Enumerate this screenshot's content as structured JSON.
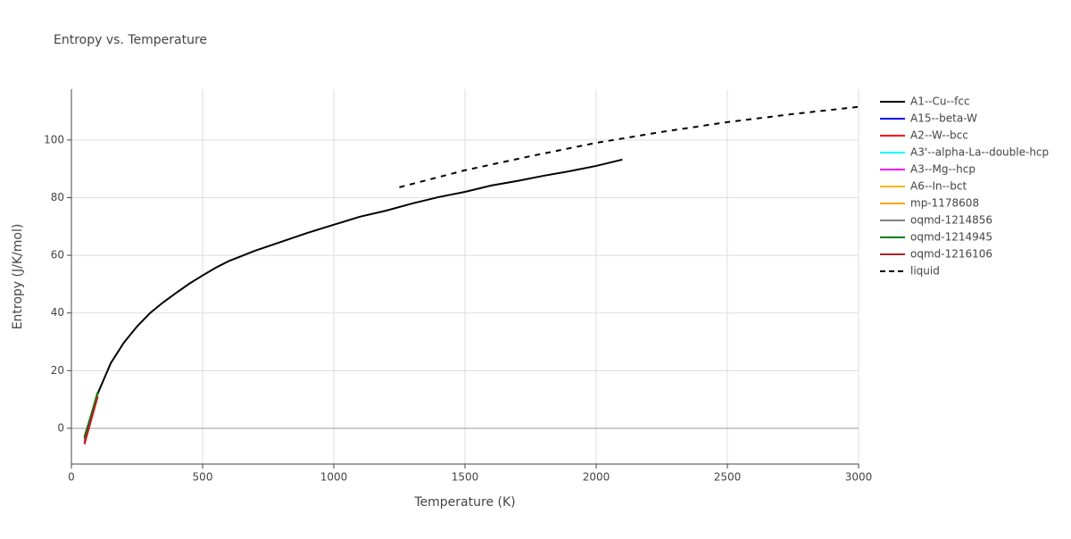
{
  "chart_data": {
    "type": "line",
    "title": "Entropy vs. Temperature",
    "x_label": "Temperature (K)",
    "y_label": "Entropy (J/K/mol)",
    "xlim": [
      0,
      3000
    ],
    "ylim": [
      -12.4,
      117.6
    ],
    "xticks": [
      0,
      500,
      1000,
      1500,
      2000,
      2500,
      3000
    ],
    "yticks": [
      0,
      20,
      40,
      60,
      80,
      100
    ],
    "grid": true,
    "legend": "right",
    "series": [
      {
        "name": "A1--Cu--fcc",
        "color": "#000000",
        "x": [
          50,
          100,
          150,
          200,
          250,
          300,
          350,
          400,
          450,
          500,
          550,
          600,
          700,
          800,
          900,
          1000,
          1100,
          1200,
          1300,
          1400,
          1500,
          1600,
          1700,
          1800,
          1900,
          2000,
          2100
        ],
        "values": [
          -3,
          12,
          22.6,
          29.7,
          35.3,
          40,
          43.7,
          47,
          50.2,
          53,
          55.7,
          58,
          61.6,
          64.7,
          67.8,
          70.6,
          73.4,
          75.5,
          78,
          80.2,
          82,
          84.2,
          85.8,
          87.6,
          89.2,
          91,
          93.2
        ]
      },
      {
        "name": "A15--beta-W",
        "color": "#0000ff",
        "x": [
          50,
          100
        ],
        "values": [
          -4,
          11
        ]
      },
      {
        "name": "A2--W--bcc",
        "color": "#ff0000",
        "x": [
          50,
          100
        ],
        "values": [
          -5.5,
          11
        ]
      },
      {
        "name": "A3'--alpha-La--double-hcp",
        "color": "#00ffff",
        "x": [
          50,
          100
        ],
        "values": [
          -4.5,
          11.5
        ]
      },
      {
        "name": "A3--Mg--hcp",
        "color": "#ff00ff",
        "x": [
          50,
          100
        ],
        "values": [
          -5,
          11
        ]
      },
      {
        "name": "A6--In--bct",
        "color": "#f5b800",
        "x": [
          50,
          100
        ],
        "values": [
          -4,
          11.5
        ]
      },
      {
        "name": "mp-1178608",
        "color": "#ffa500",
        "x": [
          50,
          100
        ],
        "values": [
          -4.5,
          11
        ]
      },
      {
        "name": "oqmd-1214856",
        "color": "#808080",
        "x": [
          50,
          100
        ],
        "values": [
          -4,
          11
        ]
      },
      {
        "name": "oqmd-1214945",
        "color": "#008000",
        "x": [
          50,
          100
        ],
        "values": [
          -3.5,
          12.5
        ]
      },
      {
        "name": "oqmd-1216106",
        "color": "#b22222",
        "x": [
          50,
          100
        ],
        "values": [
          -5,
          11
        ]
      },
      {
        "name": "liquid",
        "color": "#000000",
        "dash": "dash",
        "x": [
          1250,
          1500,
          1750,
          2000,
          2250,
          2500,
          2750,
          3000
        ],
        "values": [
          83.6,
          89.5,
          94.4,
          99,
          102.8,
          106.2,
          109,
          111.5
        ]
      }
    ]
  }
}
